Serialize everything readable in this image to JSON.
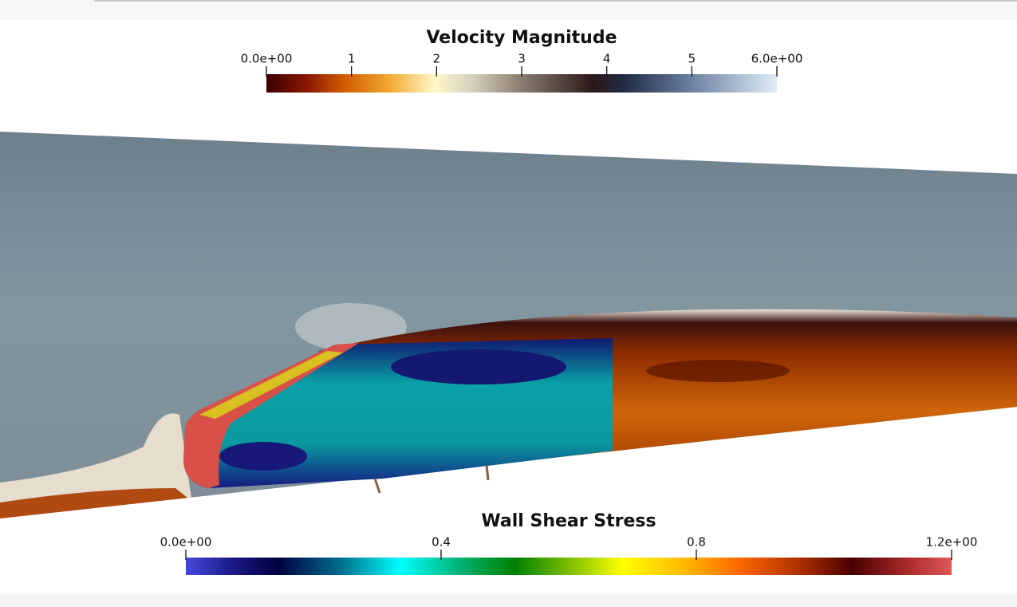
{
  "legends": [
    {
      "title": "Velocity Magnitude",
      "range": [
        0,
        6
      ],
      "ticks": [
        {
          "value": 0,
          "label": "0.0e+00"
        },
        1,
        2,
        3,
        4,
        5,
        {
          "value": 6,
          "label": "6.0e+00"
        }
      ]
    },
    {
      "title": "Wall Shear Stress",
      "range": [
        0,
        1.2
      ],
      "ticks": [
        {
          "value": 0,
          "label": "0.0e+00"
        },
        0.4,
        0.8,
        {
          "value": 1.2,
          "label": "1.2e+00"
        }
      ]
    }
  ]
}
